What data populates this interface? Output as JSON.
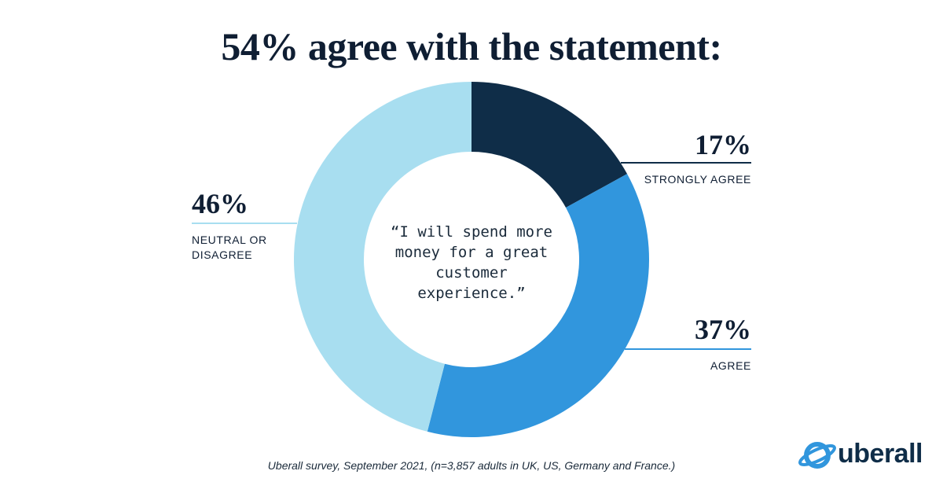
{
  "chart_data": {
    "type": "pie",
    "donut": true,
    "title": "54% agree with the statement:",
    "center_text": "“I will spend more money for a great customer experience.”",
    "categories": [
      "STRONGLY AGREE",
      "AGREE",
      "NEUTRAL OR DISAGREE"
    ],
    "values": [
      17,
      37,
      46
    ],
    "value_labels": [
      "17%",
      "37%",
      "46%"
    ],
    "colors": [
      "#0f2d48",
      "#3196dd",
      "#a8def0"
    ],
    "source": "Uberall survey, September 2021, (n=3,857 adults in UK, US, Germany and France.)"
  },
  "logo": "uberall"
}
